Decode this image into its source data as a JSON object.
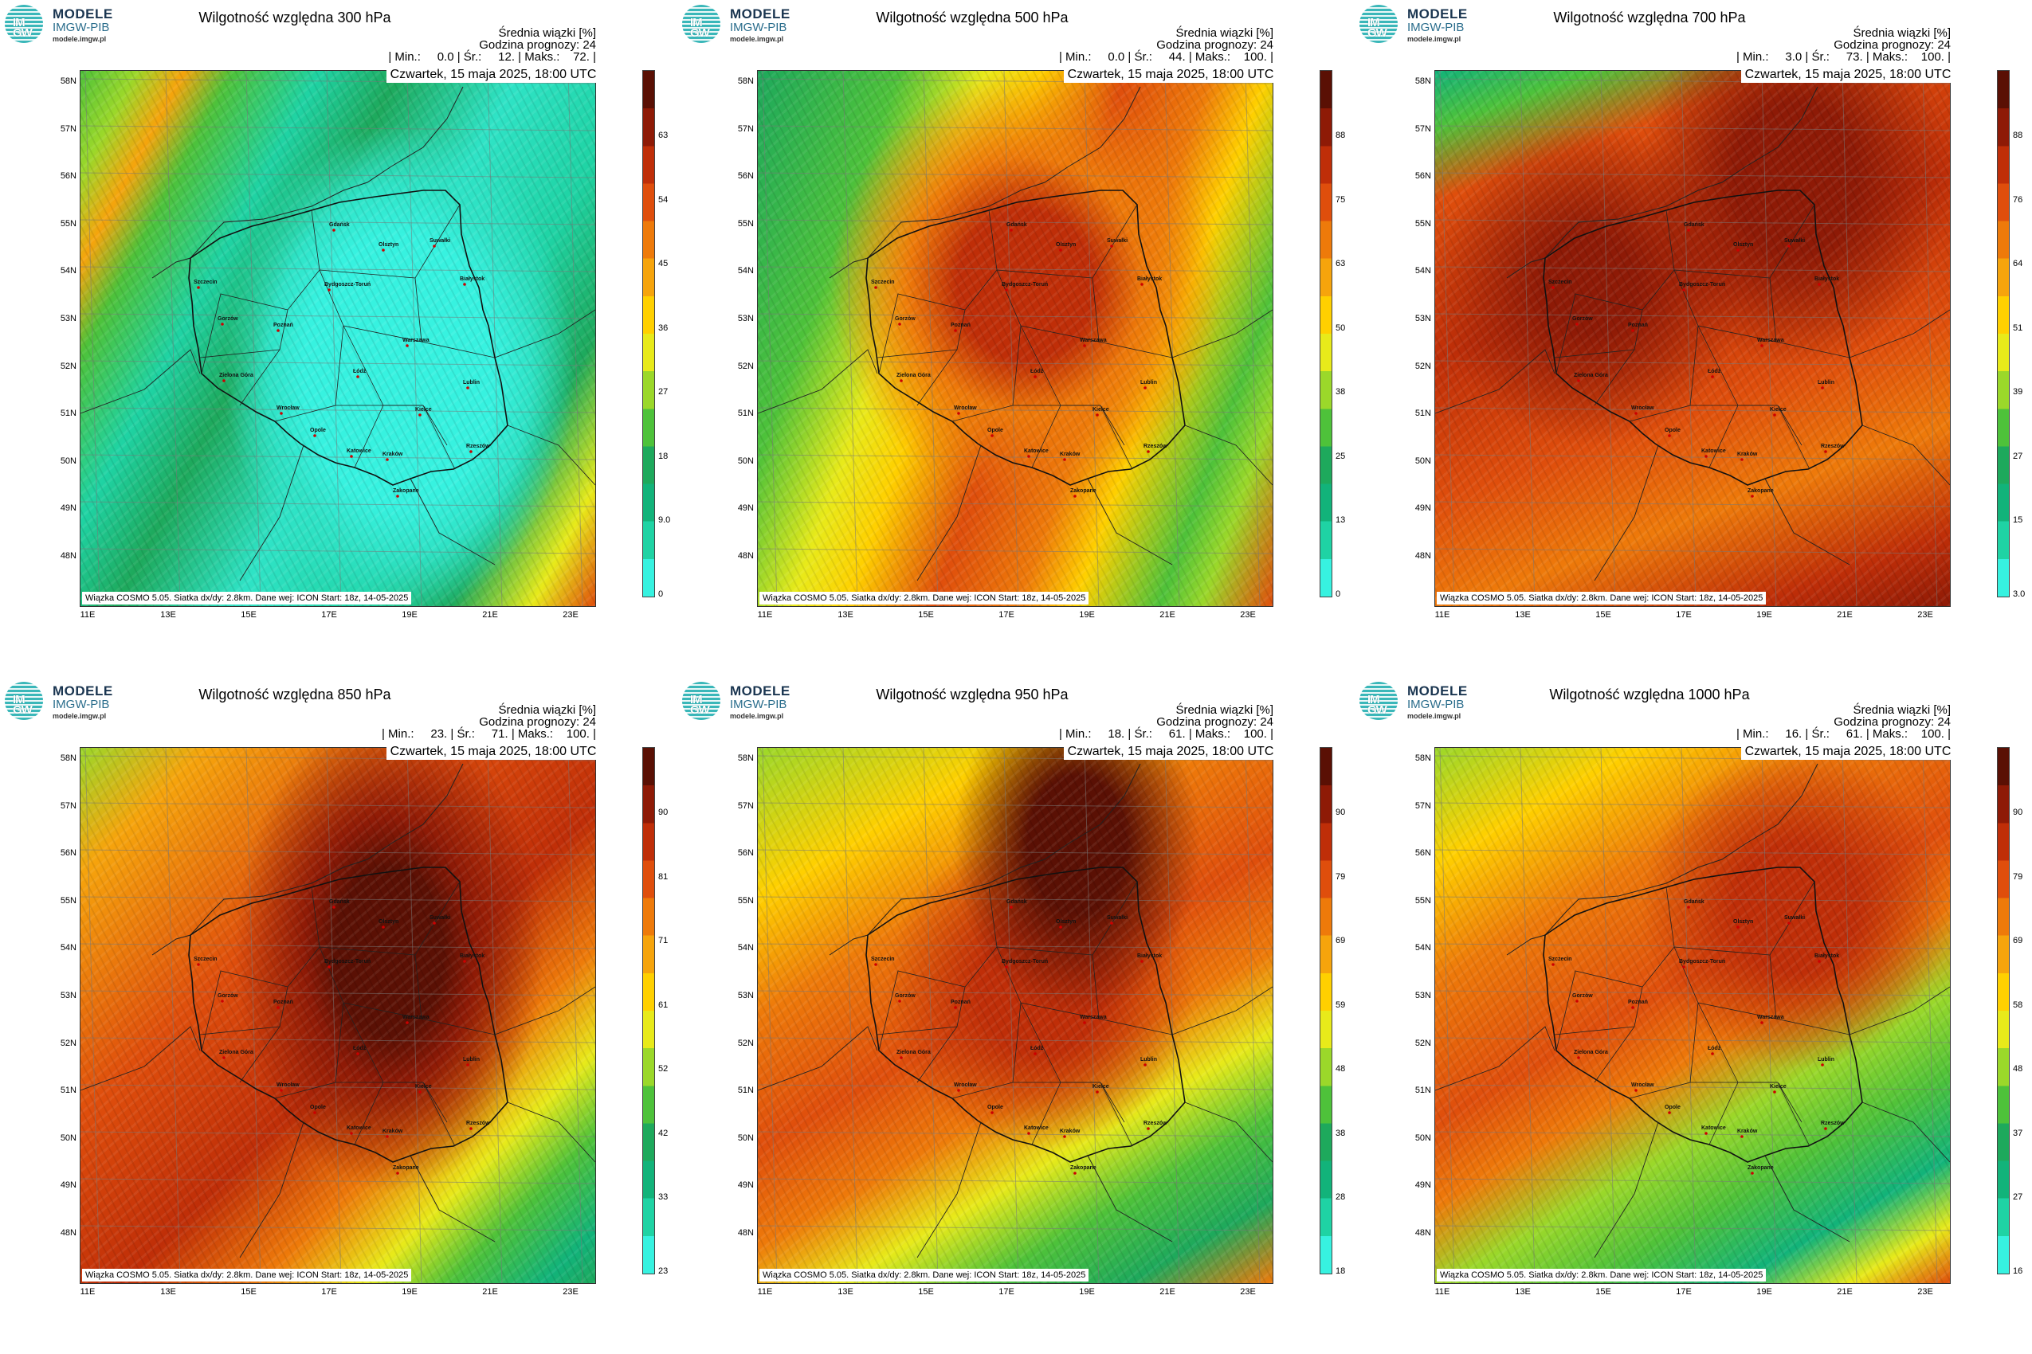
{
  "logo": {
    "brand": "MODELE",
    "org": "IMGW-PIB",
    "url": "modele.imgw.pl",
    "mark": "IM GW"
  },
  "common": {
    "info_line1": "Średnia wiązki [%]",
    "info_line2": "Godzina prognozy: 24",
    "date": "Czwartek, 15 maja 2025, 18:00 UTC",
    "credit": "Wiązka COSMO 5.05. Siatka dx/dy: 2.8km. Dane wej: ICON Start: 18z, 14-05-2025",
    "lat_labels": [
      "58N",
      "57N",
      "56N",
      "55N",
      "54N",
      "53N",
      "52N",
      "51N",
      "50N",
      "49N",
      "48N"
    ],
    "lon_labels": [
      "11E",
      "13E",
      "15E",
      "17E",
      "19E",
      "21E",
      "23E"
    ]
  },
  "colors": {
    "scale": [
      "#37f2e0",
      "#1fd3a4",
      "#12b37a",
      "#1ea95c",
      "#4ec23a",
      "#9bd82a",
      "#e8ea1a",
      "#ffd000",
      "#f6a40c",
      "#ee7a0a",
      "#df4e0c",
      "#bf2e08",
      "#8e1a06",
      "#5a1004"
    ]
  },
  "panels": [
    {
      "title": "Wilgotność względna 300 hPa",
      "stats": "| Min.:     0.0 | Śr.:     12. | Maks.:    72. |",
      "cbar_ticks": [
        "63",
        "54",
        "45",
        "36",
        "27",
        "18",
        "9.0",
        "0"
      ]
    },
    {
      "title": "Wilgotność względna 500 hPa",
      "stats": "| Min.:     0.0 | Śr.:     44. | Maks.:    100. |",
      "cbar_ticks": [
        "88",
        "75",
        "63",
        "50",
        "38",
        "25",
        "13",
        "0"
      ]
    },
    {
      "title": "Wilgotność względna 700 hPa",
      "stats": "| Min.:     3.0 | Śr.:     73. | Maks.:    100. |",
      "cbar_ticks": [
        "88",
        "76",
        "64",
        "51",
        "39",
        "27",
        "15",
        "3.0"
      ]
    },
    {
      "title": "Wilgotność względna 850 hPa",
      "stats": "| Min.:     23. | Śr.:     71. | Maks.:    100. |",
      "cbar_ticks": [
        "90",
        "81",
        "71",
        "61",
        "52",
        "42",
        "33",
        "23"
      ]
    },
    {
      "title": "Wilgotność względna 950 hPa",
      "stats": "| Min.:     18. | Śr.:     61. | Maks.:    100. |",
      "cbar_ticks": [
        "90",
        "79",
        "69",
        "59",
        "48",
        "38",
        "28",
        "18"
      ]
    },
    {
      "title": "Wilgotność względna 1000 hPa",
      "stats": "| Min.:     16. | Śr.:     61. | Maks.:    100. |",
      "cbar_ticks": [
        "90",
        "79",
        "69",
        "58",
        "48",
        "37",
        "27",
        "16"
      ]
    }
  ],
  "cities": [
    "Gdańsk",
    "Olsztyn",
    "Suwałki",
    "Szczecin",
    "Bydgoszcz-Toruń",
    "Białystok",
    "Gorzów",
    "Poznań",
    "Warszawa",
    "Zielona Góra",
    "Łódź",
    "Lublin",
    "Wrocław",
    "Kielce",
    "Opole",
    "Rzeszów",
    "Katowice",
    "Kraków",
    "Zakopane"
  ]
}
